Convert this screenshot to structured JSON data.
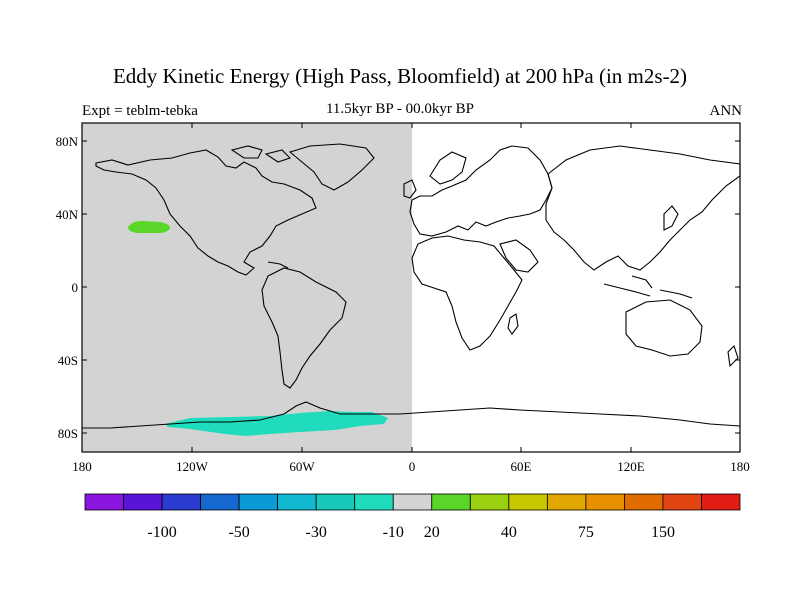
{
  "title": "Eddy Kinetic Energy (High Pass, Bloomfield) at 200 hPa (in m2s-2)",
  "subtitle_left": "Expt = teblm-tebka",
  "subtitle_center": "11.5kyr BP - 00.0kyr BP",
  "subtitle_right": "ANN",
  "lat_labels": [
    "80N",
    "40N",
    "0",
    "40S",
    "80S"
  ],
  "lon_labels": [
    "180",
    "120W",
    "60W",
    "0",
    "60E",
    "120E",
    "180"
  ],
  "colorbar": {
    "colors": [
      "#8a16e0",
      "#5a14d8",
      "#2a3cd0",
      "#1468d0",
      "#0a9ad8",
      "#10b8d0",
      "#18c8b8",
      "#20dcbc",
      "#d3d3d3",
      "#5ad628",
      "#9ad010",
      "#c8c800",
      "#e0a800",
      "#e89000",
      "#e06c00",
      "#e04410",
      "#e01c14"
    ],
    "labels": [
      "-100",
      "-50",
      "-30",
      "-10",
      "20",
      "40",
      "75",
      "150"
    ]
  },
  "chart_data": {
    "type": "map",
    "title": "Eddy Kinetic Energy (High Pass, Bloomfield) at 200 hPa (in m2s-2)",
    "subtitle": "11.5kyr BP - 00.0kyr BP",
    "experiment": "Expt = teblm-tebka",
    "season": "ANN",
    "projection": "cylindrical equidistant",
    "xlim": [
      -180,
      180
    ],
    "ylim": [
      -90,
      90
    ],
    "features": [
      {
        "region": "western hemisphere (180W-0)",
        "value_range": [
          -10,
          20
        ],
        "color": "#d3d3d3"
      },
      {
        "region": "North Pacific near 40N, 140W",
        "value_range": [
          20,
          40
        ],
        "color": "#5ad628"
      },
      {
        "region": "Southern Ocean / Antarctic coast 120W-10W",
        "value_range": [
          -30,
          -10
        ],
        "color": "#20dcbc"
      }
    ]
  }
}
